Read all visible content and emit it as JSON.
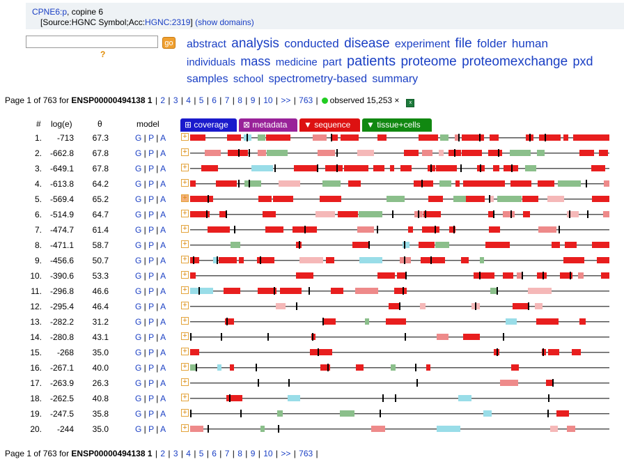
{
  "header": {
    "gene_link": "CPNE6:p",
    "gene_desc": ", copine 6",
    "source_prefix": "[Source:HGNC Symbol;Acc:",
    "source_acc": "HGNC:2319",
    "source_suffix": "]",
    "show_domains": "(show domains)"
  },
  "search": {
    "value": "",
    "go_label": "go",
    "help": "?"
  },
  "tag_cloud": [
    {
      "word": "abstract",
      "size": 16
    },
    {
      "word": "analysis",
      "size": 19
    },
    {
      "word": "conducted",
      "size": 17
    },
    {
      "word": "disease",
      "size": 19
    },
    {
      "word": "experiment",
      "size": 16
    },
    {
      "word": "file",
      "size": 19
    },
    {
      "word": "folder",
      "size": 17
    },
    {
      "word": "human",
      "size": 17
    },
    {
      "word": "individuals",
      "size": 15
    },
    {
      "word": "mass",
      "size": 18
    },
    {
      "word": "medicine",
      "size": 15
    },
    {
      "word": "part",
      "size": 16
    },
    {
      "word": "patients",
      "size": 20
    },
    {
      "word": "proteome",
      "size": 19
    },
    {
      "word": "proteomexchange",
      "size": 19
    },
    {
      "word": "pxd",
      "size": 18
    },
    {
      "word": "samples",
      "size": 16
    },
    {
      "word": "school",
      "size": 15
    },
    {
      "word": "spectrometry-based",
      "size": 16
    },
    {
      "word": "summary",
      "size": 16
    }
  ],
  "pager": {
    "prefix": "Page 1 of 763 for ",
    "protein": "ENSP00000494138",
    "current": "1",
    "pages": [
      "2",
      "3",
      "4",
      "5",
      "6",
      "7",
      "8",
      "9",
      "10"
    ],
    "next": ">>",
    "last": "763",
    "observed": "observed 15,253 ×"
  },
  "columns": {
    "num": "#",
    "loge": "log(e)",
    "theta": "θ",
    "model": "model"
  },
  "tabs": [
    {
      "label": "⊞ coverage",
      "color": "#1a1acc"
    },
    {
      "label": "⊠ metadata",
      "color": "#992299"
    },
    {
      "label": "▼ sequence",
      "color": "#dd1111"
    },
    {
      "label": "▼ tissue+cells",
      "color": "#118811"
    }
  ],
  "model_links": {
    "g": "G",
    "p": "P",
    "a": "A"
  },
  "colors": {
    "strong": "#e81e1e",
    "medium": "#ee8a8a",
    "faint": "#f5b8b8",
    "green": "#8bbf8b",
    "cyan": "#99dde8"
  },
  "rows": [
    {
      "num": "1.",
      "loge": "-713",
      "theta": "67.3"
    },
    {
      "num": "2.",
      "loge": "-662.8",
      "theta": "67.8"
    },
    {
      "num": "3.",
      "loge": "-649.1",
      "theta": "67.8"
    },
    {
      "num": "4.",
      "loge": "-613.8",
      "theta": "64.2"
    },
    {
      "num": "5.",
      "loge": "-569.4",
      "theta": "65.2"
    },
    {
      "num": "6.",
      "loge": "-514.9",
      "theta": "64.7"
    },
    {
      "num": "7.",
      "loge": "-474.7",
      "theta": "61.4"
    },
    {
      "num": "8.",
      "loge": "-471.1",
      "theta": "58.7"
    },
    {
      "num": "9.",
      "loge": "-456.6",
      "theta": "50.7"
    },
    {
      "num": "10.",
      "loge": "-390.6",
      "theta": "53.3"
    },
    {
      "num": "11.",
      "loge": "-296.8",
      "theta": "46.6"
    },
    {
      "num": "12.",
      "loge": "-295.4",
      "theta": "46.4"
    },
    {
      "num": "13.",
      "loge": "-282.2",
      "theta": "31.2"
    },
    {
      "num": "14.",
      "loge": "-280.8",
      "theta": "43.1"
    },
    {
      "num": "15.",
      "loge": "-268",
      "theta": "35.0"
    },
    {
      "num": "16.",
      "loge": "-267.1",
      "theta": "40.0"
    },
    {
      "num": "17.",
      "loge": "-263.9",
      "theta": "26.3"
    },
    {
      "num": "18.",
      "loge": "-262.5",
      "theta": "40.8"
    },
    {
      "num": "19.",
      "loge": "-247.5",
      "theta": "35.8"
    },
    {
      "num": "20.",
      "loge": "-244",
      "theta": "35.0"
    }
  ]
}
